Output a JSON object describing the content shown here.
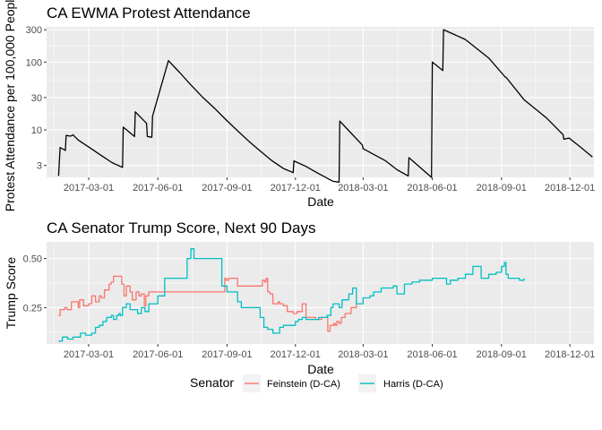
{
  "chart_data": [
    {
      "type": "line",
      "title": "CA EWMA Protest Attendance",
      "xlabel": "Date",
      "ylabel": "Protest Attendance per 100,000 People",
      "yscale": "log",
      "xlim": [
        "2017-01-04",
        "2019-01-02"
      ],
      "ylim": [
        2.0,
        330
      ],
      "xticks": [
        "2017-03-01",
        "2017-06-01",
        "2017-09-01",
        "2017-12-01",
        "2018-03-01",
        "2018-06-01",
        "2018-09-01",
        "2018-12-01"
      ],
      "yticks": [
        3,
        10,
        30,
        100,
        300
      ],
      "grid": true,
      "series": [
        {
          "color": "#000000",
          "x": [
            "2017-01-20",
            "2017-01-22",
            "2017-01-29",
            "2017-01-30",
            "2017-02-05",
            "2017-02-08",
            "2017-02-15",
            "2017-03-01",
            "2017-03-15",
            "2017-04-01",
            "2017-04-15",
            "2017-04-16",
            "2017-05-01",
            "2017-05-02",
            "2017-05-17",
            "2017-05-18",
            "2017-05-24",
            "2017-05-25",
            "2017-06-15",
            "2017-06-30",
            "2017-07-15",
            "2017-07-31",
            "2017-08-15",
            "2017-08-31",
            "2017-09-15",
            "2017-09-30",
            "2017-10-15",
            "2017-10-31",
            "2017-11-15",
            "2017-11-28",
            "2017-11-29",
            "2017-12-15",
            "2017-12-31",
            "2018-01-20",
            "2018-01-28",
            "2018-01-29",
            "2018-02-28",
            "2018-03-01",
            "2018-03-31",
            "2018-04-15",
            "2018-04-30",
            "2018-05-01",
            "2018-05-31",
            "2018-06-01",
            "2018-06-15",
            "2018-06-16",
            "2018-07-15",
            "2018-08-15",
            "2018-09-05",
            "2018-09-06",
            "2018-09-07",
            "2018-10-01",
            "2018-10-31",
            "2018-11-22",
            "2018-11-23",
            "2018-11-30",
            "2018-12-15",
            "2018-12-31"
          ],
          "y": [
            2.1,
            5.5,
            5.0,
            8.3,
            8.1,
            8.5,
            7.1,
            5.6,
            4.4,
            3.3,
            2.8,
            11.0,
            8.0,
            18.5,
            12.5,
            8.0,
            7.8,
            16.0,
            105,
            70,
            46,
            30,
            21,
            14,
            9.7,
            6.8,
            4.9,
            3.5,
            2.7,
            2.35,
            3.5,
            2.9,
            2.3,
            1.75,
            1.7,
            13.5,
            6.0,
            5.3,
            3.5,
            2.6,
            2.1,
            3.9,
            2.0,
            100,
            75,
            300,
            215,
            115,
            62,
            60,
            60,
            28,
            15,
            8.5,
            7.3,
            7.6,
            5.6,
            4.0
          ]
        }
      ]
    },
    {
      "type": "line",
      "title": "CA Senator Trump Score, Next 90 Days",
      "xlabel": "Date",
      "ylabel": "Trump Score",
      "xlim": [
        "2017-01-04",
        "2019-01-02"
      ],
      "ylim": [
        0.065,
        0.585
      ],
      "xticks": [
        "2017-03-01",
        "2017-06-01",
        "2017-09-01",
        "2017-12-01",
        "2018-03-01",
        "2018-06-01",
        "2018-09-01",
        "2018-12-01"
      ],
      "yticks": [
        0.25,
        0.5
      ],
      "grid": true,
      "legend": {
        "title": "Senator",
        "position": "bottom",
        "entries": [
          "Feinstein (D-CA)",
          "Harris (D-CA)"
        ]
      },
      "series": [
        {
          "name": "Feinstein (D-CA)",
          "color": "#F8766D",
          "x": [
            "2017-01-20",
            "2017-01-22",
            "2017-01-28",
            "2017-01-31",
            "2017-02-06",
            "2017-02-15",
            "2017-02-17",
            "2017-02-22",
            "2017-03-01",
            "2017-03-05",
            "2017-03-10",
            "2017-03-15",
            "2017-03-18",
            "2017-03-22",
            "2017-03-28",
            "2017-03-31",
            "2017-04-03",
            "2017-04-08",
            "2017-04-12",
            "2017-04-14",
            "2017-04-17",
            "2017-04-20",
            "2017-04-25",
            "2017-04-28",
            "2017-05-03",
            "2017-05-07",
            "2017-05-10",
            "2017-05-14",
            "2017-05-16",
            "2017-05-20",
            "2017-08-29",
            "2017-08-31",
            "2017-09-03",
            "2017-09-14",
            "2017-09-15",
            "2017-10-15",
            "2017-10-18",
            "2017-10-21",
            "2017-10-23",
            "2017-10-25",
            "2017-10-28",
            "2017-11-01",
            "2017-11-08",
            "2017-11-10",
            "2017-11-15",
            "2017-11-20",
            "2017-11-28",
            "2017-12-03",
            "2017-12-10",
            "2017-12-15",
            "2017-12-20",
            "2017-12-28",
            "2018-01-05",
            "2018-01-10",
            "2018-01-13",
            "2018-01-16",
            "2018-01-21",
            "2018-01-23",
            "2018-01-25",
            "2018-01-28",
            "2018-01-31",
            "2018-02-05",
            "2018-02-13",
            "2018-02-20"
          ],
          "y": [
            0.21,
            0.24,
            0.25,
            0.24,
            0.28,
            0.25,
            0.29,
            0.26,
            0.27,
            0.31,
            0.28,
            0.31,
            0.3,
            0.34,
            0.37,
            0.38,
            0.41,
            0.41,
            0.41,
            0.37,
            0.31,
            0.36,
            0.33,
            0.29,
            0.33,
            0.31,
            0.32,
            0.26,
            0.31,
            0.33,
            0.4,
            0.39,
            0.4,
            0.4,
            0.36,
            0.36,
            0.39,
            0.38,
            0.4,
            0.33,
            0.32,
            0.27,
            0.28,
            0.27,
            0.26,
            0.23,
            0.22,
            0.23,
            0.27,
            0.2,
            0.2,
            0.19,
            0.2,
            0.2,
            0.13,
            0.16,
            0.17,
            0.16,
            0.18,
            0.17,
            0.2,
            0.22,
            0.25,
            0.28
          ]
        },
        {
          "name": "Harris (D-CA)",
          "color": "#00BFC4",
          "x": [
            "2017-01-20",
            "2017-01-25",
            "2017-02-01",
            "2017-02-08",
            "2017-02-15",
            "2017-02-18",
            "2017-02-25",
            "2017-03-05",
            "2017-03-10",
            "2017-03-15",
            "2017-03-20",
            "2017-03-25",
            "2017-03-31",
            "2017-04-03",
            "2017-04-07",
            "2017-04-10",
            "2017-04-12",
            "2017-04-15",
            "2017-04-20",
            "2017-04-25",
            "2017-05-05",
            "2017-05-10",
            "2017-05-15",
            "2017-05-20",
            "2017-06-01",
            "2017-06-10",
            "2017-06-15",
            "2017-06-25",
            "2017-07-05",
            "2017-07-10",
            "2017-07-15",
            "2017-07-19",
            "2017-07-25",
            "2017-07-28",
            "2017-08-05",
            "2017-08-10",
            "2017-08-15",
            "2017-08-20",
            "2017-08-25",
            "2017-09-01",
            "2017-09-10",
            "2017-09-15",
            "2017-09-20",
            "2017-09-25",
            "2017-10-01",
            "2017-10-05",
            "2017-10-15",
            "2017-10-20",
            "2017-10-25",
            "2017-11-01",
            "2017-11-10",
            "2017-11-15",
            "2017-12-01",
            "2017-12-05",
            "2017-12-10",
            "2017-12-15",
            "2018-01-01",
            "2018-01-12",
            "2018-01-17",
            "2018-01-20",
            "2018-01-28",
            "2018-02-01",
            "2018-02-10",
            "2018-02-15",
            "2018-02-20",
            "2018-03-01",
            "2018-03-10",
            "2018-03-15",
            "2018-03-25",
            "2018-04-10",
            "2018-04-15",
            "2018-04-25",
            "2018-05-05",
            "2018-05-15",
            "2018-06-01",
            "2018-06-15",
            "2018-06-20",
            "2018-06-25",
            "2018-07-05",
            "2018-07-15",
            "2018-07-25",
            "2018-08-05",
            "2018-08-15",
            "2018-08-25",
            "2018-09-01",
            "2018-09-05",
            "2018-09-07",
            "2018-09-10",
            "2018-09-15",
            "2018-09-20",
            "2018-09-25",
            "2018-10-01"
          ],
          "y": [
            0.08,
            0.1,
            0.09,
            0.1,
            0.1,
            0.12,
            0.11,
            0.12,
            0.15,
            0.16,
            0.18,
            0.2,
            0.21,
            0.19,
            0.21,
            0.22,
            0.21,
            0.25,
            0.27,
            0.24,
            0.22,
            0.25,
            0.23,
            0.27,
            0.31,
            0.4,
            0.4,
            0.4,
            0.4,
            0.5,
            0.55,
            0.5,
            0.5,
            0.5,
            0.5,
            0.5,
            0.5,
            0.5,
            0.36,
            0.33,
            0.33,
            0.28,
            0.25,
            0.25,
            0.25,
            0.25,
            0.2,
            0.15,
            0.14,
            0.12,
            0.15,
            0.16,
            0.18,
            0.19,
            0.2,
            0.19,
            0.2,
            0.21,
            0.25,
            0.27,
            0.25,
            0.29,
            0.32,
            0.35,
            0.27,
            0.3,
            0.31,
            0.33,
            0.35,
            0.36,
            0.32,
            0.37,
            0.38,
            0.39,
            0.4,
            0.4,
            0.37,
            0.39,
            0.4,
            0.42,
            0.46,
            0.4,
            0.42,
            0.43,
            0.46,
            0.48,
            0.42,
            0.4,
            0.4,
            0.4,
            0.39,
            0.4
          ]
        }
      ]
    }
  ]
}
